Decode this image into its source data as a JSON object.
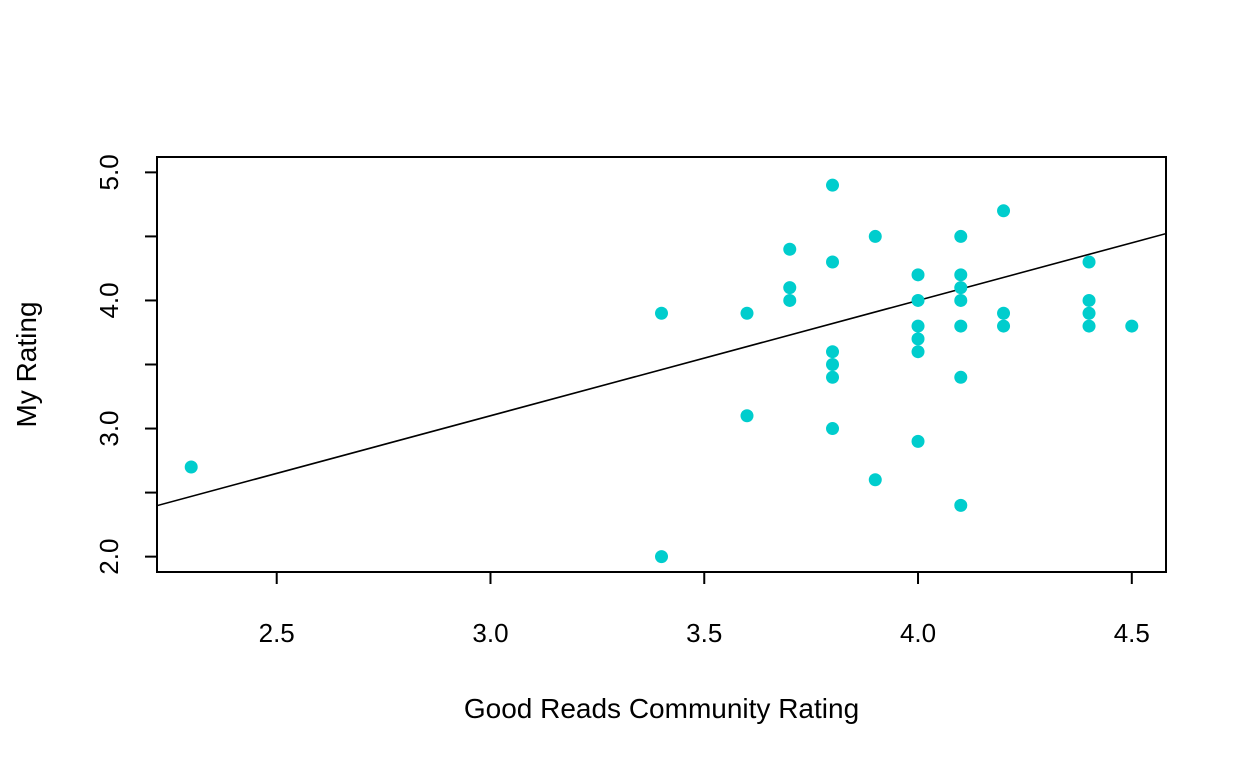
{
  "chart_data": {
    "type": "scatter",
    "title": "",
    "xlabel": "Good Reads Community Rating",
    "ylabel": "My Rating",
    "xlim": [
      2.22,
      4.58
    ],
    "ylim": [
      1.88,
      5.12
    ],
    "x_ticks": [
      2.5,
      3.0,
      3.5,
      4.0,
      4.5
    ],
    "x_tick_labels": [
      "2.5",
      "3.0",
      "3.5",
      "4.0",
      "4.5"
    ],
    "y_ticks": [
      2.0,
      2.5,
      3.0,
      3.5,
      4.0,
      4.5,
      5.0
    ],
    "y_tick_labels": [
      "2.0",
      "",
      "3.0",
      "",
      "4.0",
      "",
      "5.0"
    ],
    "grid": false,
    "legend": "none",
    "point_color": "#00CDCD",
    "line_color": "#000000",
    "regression_line": {
      "intercept": 0.4,
      "slope": 0.9
    },
    "points": [
      {
        "x": 2.3,
        "y": 2.7
      },
      {
        "x": 3.4,
        "y": 3.9
      },
      {
        "x": 3.4,
        "y": 2.0
      },
      {
        "x": 3.6,
        "y": 3.9
      },
      {
        "x": 3.6,
        "y": 3.1
      },
      {
        "x": 3.7,
        "y": 4.4
      },
      {
        "x": 3.7,
        "y": 4.1
      },
      {
        "x": 3.7,
        "y": 4.0
      },
      {
        "x": 3.8,
        "y": 4.9
      },
      {
        "x": 3.8,
        "y": 4.3
      },
      {
        "x": 3.8,
        "y": 3.6
      },
      {
        "x": 3.8,
        "y": 3.5
      },
      {
        "x": 3.8,
        "y": 3.4
      },
      {
        "x": 3.8,
        "y": 3.0
      },
      {
        "x": 3.9,
        "y": 4.5
      },
      {
        "x": 3.9,
        "y": 2.6
      },
      {
        "x": 4.0,
        "y": 4.2
      },
      {
        "x": 4.0,
        "y": 4.0
      },
      {
        "x": 4.0,
        "y": 3.8
      },
      {
        "x": 4.0,
        "y": 3.7
      },
      {
        "x": 4.0,
        "y": 3.6
      },
      {
        "x": 4.0,
        "y": 2.9
      },
      {
        "x": 4.1,
        "y": 4.5
      },
      {
        "x": 4.1,
        "y": 4.2
      },
      {
        "x": 4.1,
        "y": 4.1
      },
      {
        "x": 4.1,
        "y": 4.0
      },
      {
        "x": 4.1,
        "y": 3.8
      },
      {
        "x": 4.1,
        "y": 3.4
      },
      {
        "x": 4.1,
        "y": 2.4
      },
      {
        "x": 4.2,
        "y": 4.7
      },
      {
        "x": 4.2,
        "y": 3.9
      },
      {
        "x": 4.2,
        "y": 3.8
      },
      {
        "x": 4.4,
        "y": 4.3
      },
      {
        "x": 4.4,
        "y": 4.0
      },
      {
        "x": 4.4,
        "y": 3.9
      },
      {
        "x": 4.4,
        "y": 3.8
      },
      {
        "x": 4.5,
        "y": 3.8
      }
    ]
  }
}
